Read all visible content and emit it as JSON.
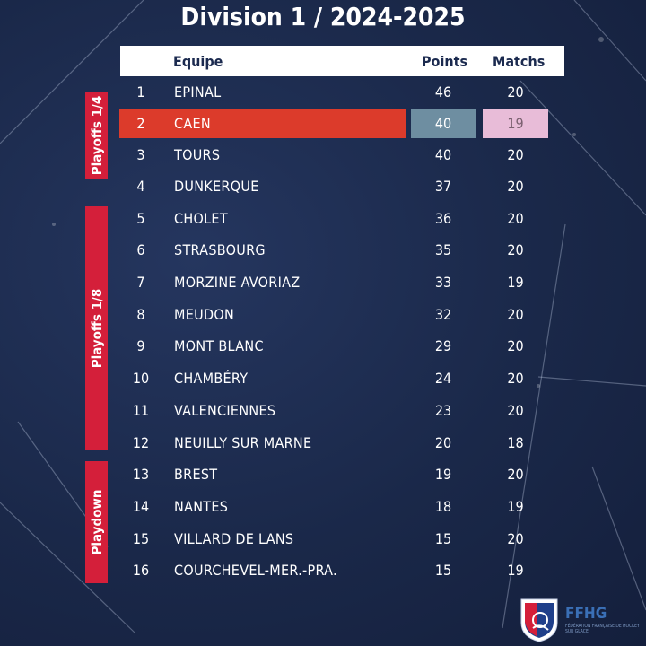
{
  "title": "Division 1 / 2024-2025",
  "headers": {
    "team": "Equipe",
    "points": "Points",
    "matches": "Matchs"
  },
  "groups": [
    "Playoffs 1/4",
    "Playoffs 1/8",
    "Playdown"
  ],
  "rows": [
    {
      "rank": "1",
      "team": "EPINAL",
      "points": "46",
      "matches": "20"
    },
    {
      "rank": "2",
      "team": "CAEN",
      "points": "40",
      "matches": "19",
      "highlight": true
    },
    {
      "rank": "3",
      "team": "TOURS",
      "points": "40",
      "matches": "20"
    },
    {
      "rank": "4",
      "team": "DUNKERQUE",
      "points": "37",
      "matches": "20"
    },
    {
      "rank": "5",
      "team": "CHOLET",
      "points": "36",
      "matches": "20"
    },
    {
      "rank": "6",
      "team": "STRASBOURG",
      "points": "35",
      "matches": "20"
    },
    {
      "rank": "7",
      "team": "MORZINE AVORIAZ",
      "points": "33",
      "matches": "19"
    },
    {
      "rank": "8",
      "team": "MEUDON",
      "points": "32",
      "matches": "20"
    },
    {
      "rank": "9",
      "team": "MONT BLANC",
      "points": "29",
      "matches": "20"
    },
    {
      "rank": "10",
      "team": "CHAMBÉRY",
      "points": "24",
      "matches": "20"
    },
    {
      "rank": "11",
      "team": "VALENCIENNES",
      "points": "23",
      "matches": "20"
    },
    {
      "rank": "12",
      "team": "NEUILLY SUR MARNE",
      "points": "20",
      "matches": "18"
    },
    {
      "rank": "13",
      "team": "BREST",
      "points": "19",
      "matches": "20"
    },
    {
      "rank": "14",
      "team": "NANTES",
      "points": "18",
      "matches": "19"
    },
    {
      "rank": "15",
      "team": "VILLARD DE LANS",
      "points": "15",
      "matches": "20"
    },
    {
      "rank": "16",
      "team": "COURCHEVEL-MER.-PRA.",
      "points": "15",
      "matches": "19"
    }
  ],
  "logo": {
    "text": "FFHG",
    "subtitle": "FÉDÉRATION FRANÇAISE DE HOCKEY SUR GLACE"
  },
  "colors": {
    "background": "#1c2b4f",
    "group_band": "#d41f3a",
    "highlight_team": "#dc3b2b",
    "highlight_points": "#6e8ea1",
    "highlight_matches": "#e8bcd8"
  }
}
